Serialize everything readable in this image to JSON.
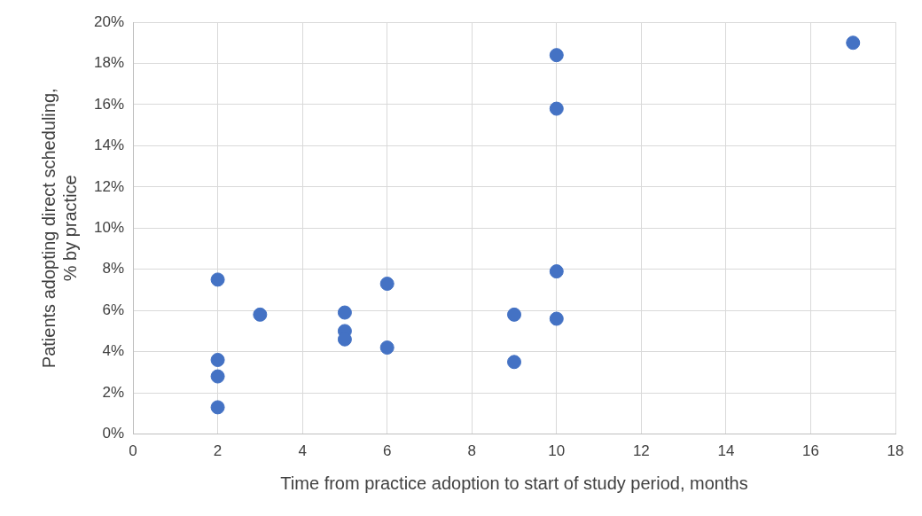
{
  "chart_data": {
    "type": "scatter",
    "xlabel": "Time from practice adoption to start of study period, months",
    "ylabel": "Patients adopting direct scheduling, % by practice",
    "x": [
      2,
      2,
      2,
      2,
      3,
      5,
      5,
      5,
      6,
      6,
      9,
      9,
      10,
      10,
      10,
      10,
      17
    ],
    "series": [
      {
        "color": "#4472c4",
        "values": [
          7.5,
          3.6,
          2.8,
          1.3,
          5.8,
          5.9,
          5.0,
          4.6,
          7.3,
          4.2,
          5.8,
          3.5,
          18.4,
          15.8,
          7.9,
          5.6,
          19.0
        ]
      }
    ],
    "xlim": [
      0,
      18
    ],
    "xticks": [
      0,
      2,
      4,
      6,
      8,
      10,
      12,
      14,
      16,
      18
    ],
    "ylim": [
      0,
      20
    ],
    "yticks": [
      {
        "value": 0,
        "label": "0%"
      },
      {
        "value": 2,
        "label": "2%"
      },
      {
        "value": 4,
        "label": "4%"
      },
      {
        "value": 6,
        "label": "6%"
      },
      {
        "value": 8,
        "label": "8%"
      },
      {
        "value": 10,
        "label": "10%"
      },
      {
        "value": 12,
        "label": "12%"
      },
      {
        "value": 14,
        "label": "14%"
      },
      {
        "value": 16,
        "label": "16%"
      },
      {
        "value": 18,
        "label": "18%"
      },
      {
        "value": 20,
        "label": "20%"
      }
    ],
    "grid": true,
    "legend": false,
    "marker": "circle"
  }
}
